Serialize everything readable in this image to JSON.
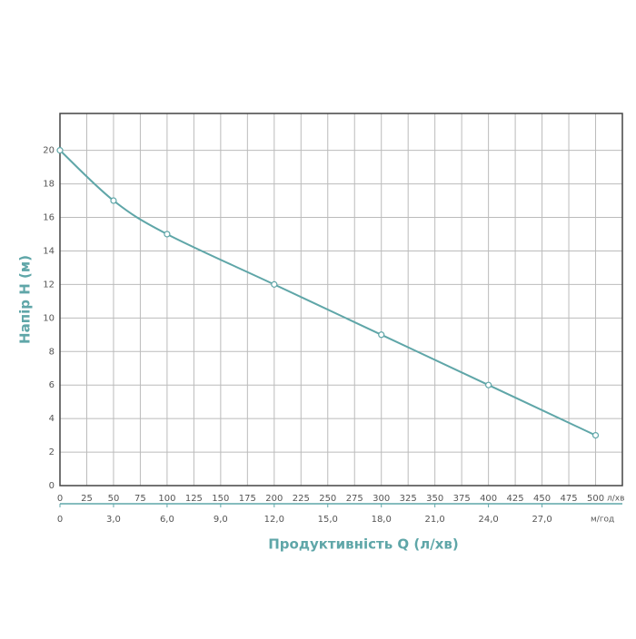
{
  "chart_data": {
    "type": "line",
    "x_label": "Продуктивність Q (л/хв)",
    "y_label": "Напір H (м)",
    "x_unit": "л/хв",
    "x2_unit": "м/год",
    "x": [
      0,
      50,
      100,
      200,
      300,
      400,
      500
    ],
    "series": [
      {
        "name": "H",
        "color": "#5fa6a8",
        "values": [
          20,
          17,
          15,
          12,
          9,
          6,
          3
        ]
      }
    ],
    "xlim": [
      0,
      525
    ],
    "xticks": [
      0,
      25,
      50,
      75,
      100,
      125,
      150,
      175,
      200,
      225,
      250,
      275,
      300,
      325,
      350,
      375,
      400,
      425,
      450,
      475,
      500
    ],
    "x2lim": [
      0,
      31.5
    ],
    "x2ticks": [
      0,
      {
        "value": 3,
        "label": "3,0"
      },
      {
        "value": 6,
        "label": "6,0"
      },
      {
        "value": 9,
        "label": "9,0"
      },
      {
        "value": 12,
        "label": "12,0"
      },
      {
        "value": 15,
        "label": "15,0"
      },
      {
        "value": 18,
        "label": "18,0"
      },
      {
        "value": 21,
        "label": "21,0"
      },
      {
        "value": 24,
        "label": "24,0"
      },
      {
        "value": 27,
        "label": "27,0"
      }
    ],
    "ylim": [
      0,
      22.2
    ],
    "yticks": [
      0,
      2,
      4,
      6,
      8,
      10,
      12,
      14,
      16,
      18,
      20
    ],
    "grid": true,
    "markers": true
  }
}
